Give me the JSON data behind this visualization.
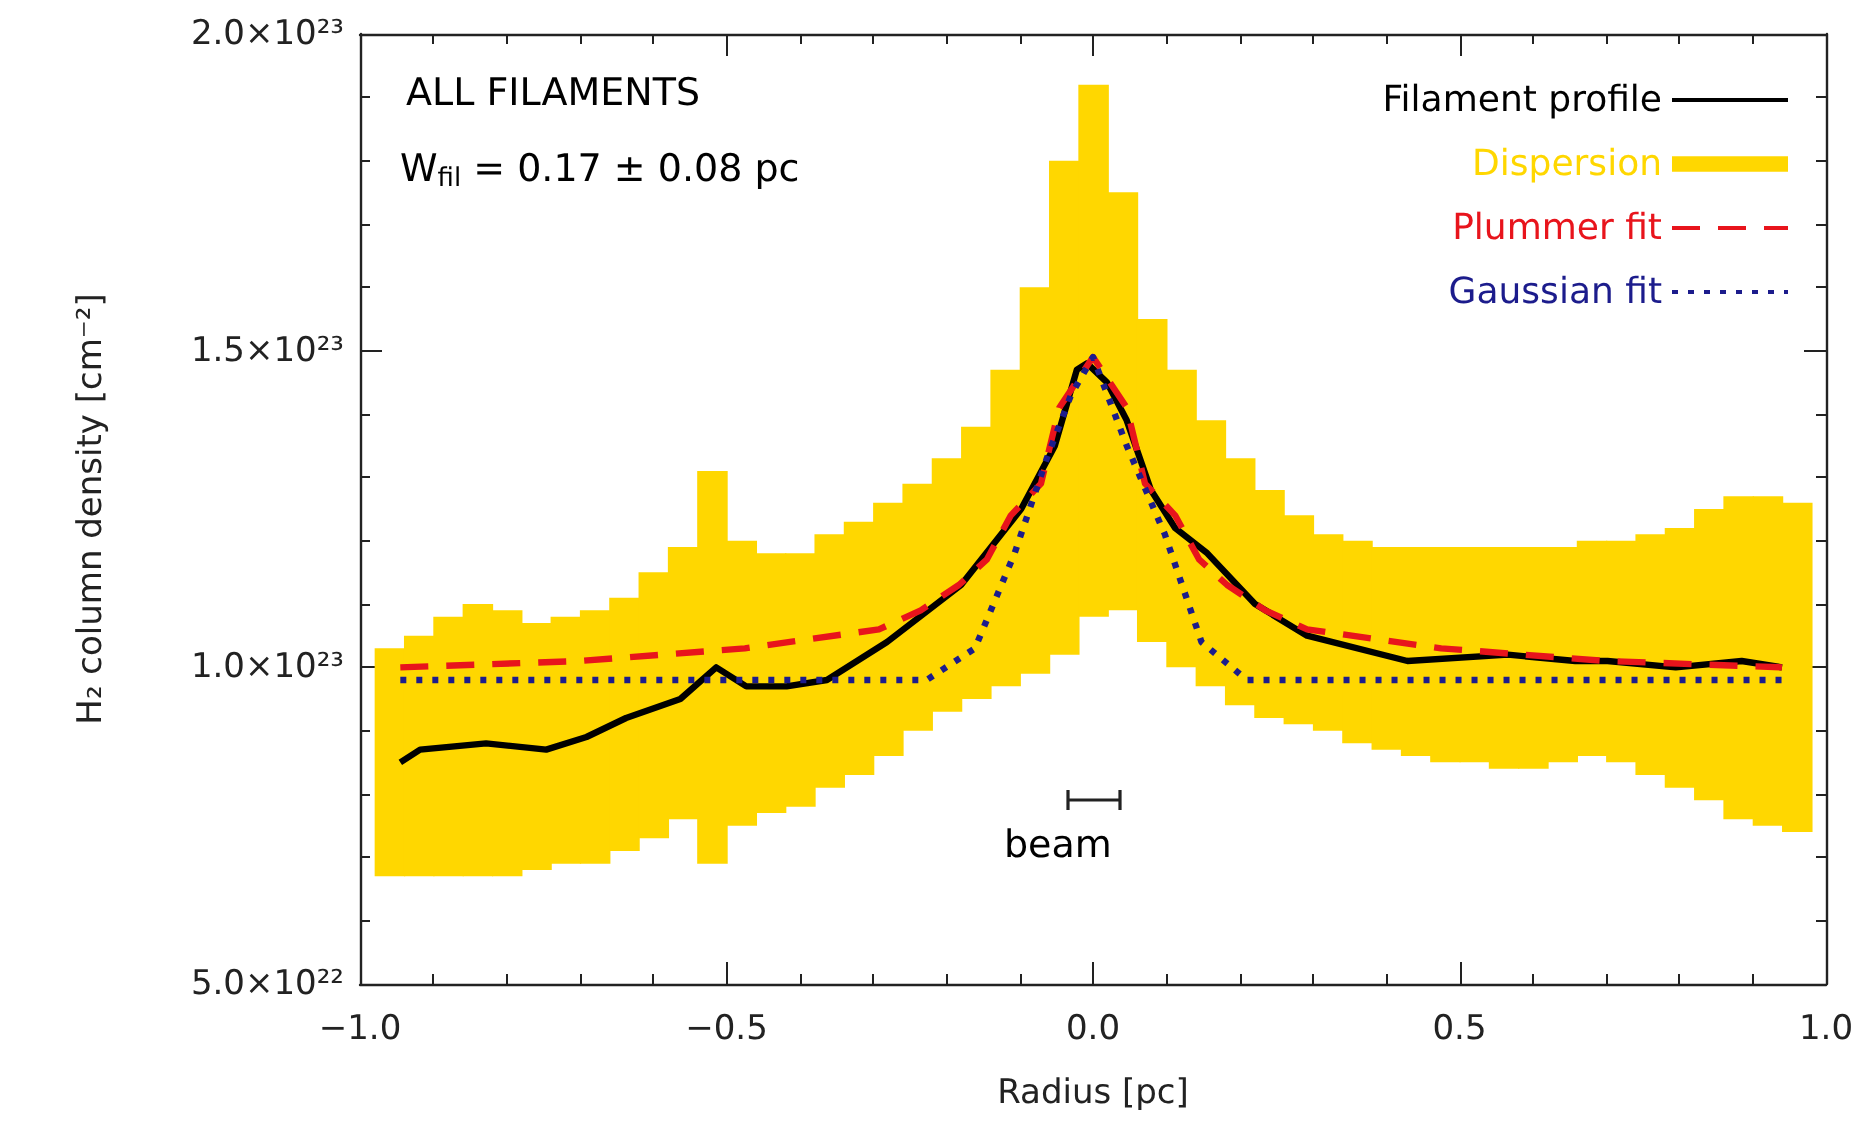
{
  "chart_data": {
    "type": "line",
    "xlabel": "Radius [pc]",
    "ylabel": "H₂ column density [cm⁻²]",
    "annotations": [
      "ALL FILAMENTS",
      "W$_{fil}$ = 0.17 ± 0.08 pc",
      "beam"
    ],
    "xlim": [
      -1,
      1
    ],
    "xticks": [
      {
        "value": -1,
        "label": "−1.0"
      },
      {
        "value": -0.5,
        "label": "−0.5"
      },
      {
        "value": 0,
        "label": "0.0"
      },
      {
        "value": 0.5,
        "label": "0.5"
      },
      {
        "value": 1,
        "label": "1.0"
      }
    ],
    "ylim": [
      5e+22,
      2e+23
    ],
    "yticks": [
      {
        "value": 5e+22,
        "label": "5.0×10²²"
      },
      {
        "value": 1e+23,
        "label": "1.0×10²³"
      },
      {
        "value": 1.5e+23,
        "label": "1.5×10²³"
      },
      {
        "value": 2e+23,
        "label": "2.0×10²³"
      }
    ],
    "grid": false,
    "legend": "top right",
    "marker": "none",
    "series": [
      {
        "name": "Filament profile",
        "color": "#000000",
        "line_style": "solid",
        "x": [
          -0.945,
          -0.918,
          -0.828,
          -0.746,
          -0.691,
          -0.637,
          -0.563,
          -0.514,
          -0.473,
          -0.418,
          -0.363,
          -0.281,
          -0.18,
          -0.098,
          -0.052,
          -0.022,
          -0.008,
          0.019,
          0.046,
          0.079,
          0.112,
          0.156,
          0.221,
          0.292,
          0.429,
          0.566,
          0.658,
          0.702,
          0.795,
          0.885,
          0.94
        ],
        "values": [
          8.5e+22,
          8.7e+22,
          8.8e+22,
          8.7e+22,
          8.9e+22,
          9.2e+22,
          9.5e+22,
          1e+23,
          9.7e+22,
          9.7e+22,
          9.8e+22,
          1.04e+23,
          1.13e+23,
          1.25e+23,
          1.35e+23,
          1.47e+23,
          1.48e+23,
          1.45e+23,
          1.39e+23,
          1.28e+23,
          1.22e+23,
          1.18e+23,
          1.1e+23,
          1.05e+23,
          1.01e+23,
          1.02e+23,
          1.01e+23,
          1.01e+23,
          1e+23,
          1.01e+23,
          1e+23
        ]
      },
      {
        "name": "Dispersion",
        "type": "bar",
        "color": "#ffd700",
        "x": [
          -0.96,
          -0.92,
          -0.88,
          -0.84,
          -0.8,
          -0.76,
          -0.72,
          -0.68,
          -0.64,
          -0.6,
          -0.56,
          -0.52,
          -0.48,
          -0.44,
          -0.4,
          -0.36,
          -0.32,
          -0.28,
          -0.24,
          -0.2,
          -0.16,
          -0.12,
          -0.08,
          -0.04,
          0,
          0.04,
          0.08,
          0.12,
          0.16,
          0.2,
          0.24,
          0.28,
          0.32,
          0.36,
          0.4,
          0.44,
          0.48,
          0.52,
          0.56,
          0.6,
          0.64,
          0.68,
          0.72,
          0.76,
          0.8,
          0.84,
          0.88,
          0.92,
          0.96
        ],
        "base": [
          6.7e+22,
          6.7e+22,
          6.7e+22,
          6.7e+22,
          6.7e+22,
          6.8e+22,
          6.9e+22,
          6.9e+22,
          7.1e+22,
          7.3e+22,
          7.6e+22,
          6.9e+22,
          7.5e+22,
          7.7e+22,
          7.8e+22,
          8.1e+22,
          8.3e+22,
          8.6e+22,
          9e+22,
          9.3e+22,
          9.5e+22,
          9.7e+22,
          9.9e+22,
          1.02e+23,
          1.08e+23,
          1.09e+23,
          1.04e+23,
          1e+23,
          9.7e+22,
          9.4e+22,
          9.2e+22,
          9.1e+22,
          9e+22,
          8.8e+22,
          8.7e+22,
          8.6e+22,
          8.5e+22,
          8.5e+22,
          8.4e+22,
          8.4e+22,
          8.5e+22,
          8.6e+22,
          8.5e+22,
          8.3e+22,
          8.1e+22,
          7.9e+22,
          7.6e+22,
          7.5e+22,
          7.4e+22
        ],
        "values": [
          3.6e+22,
          3.8e+22,
          4.1e+22,
          4.3e+22,
          4.2e+22,
          3.9e+22,
          3.9e+22,
          4e+22,
          4e+22,
          4.2e+22,
          4.3e+22,
          6.2e+22,
          4.5e+22,
          4.1e+22,
          4e+22,
          4e+22,
          4e+22,
          4e+22,
          3.9e+22,
          4e+22,
          4.3e+22,
          5e+22,
          6.1e+22,
          7.8e+22,
          8.4e+22,
          6.6e+22,
          5.1e+22,
          4.7e+22,
          4.2e+22,
          3.9e+22,
          3.6e+22,
          3.3e+22,
          3.1e+22,
          3.2e+22,
          3.2e+22,
          3.3e+22,
          3.4e+22,
          3.4e+22,
          3.5e+22,
          3.5e+22,
          3.4e+22,
          3.4e+22,
          3.5e+22,
          3.8e+22,
          4.1e+22,
          4.6e+22,
          5.1e+22,
          5.2e+22,
          5.2e+22
        ]
      },
      {
        "name": "Plummer fit",
        "color": "#e8141c",
        "line_style": "dashed",
        "x": [
          -0.945,
          -0.7,
          -0.475,
          -0.292,
          -0.235,
          -0.183,
          -0.145,
          -0.112,
          -0.071,
          -0.046,
          0,
          0.046,
          0.071,
          0.112,
          0.145,
          0.183,
          0.235,
          0.292,
          0.475,
          0.7,
          0.94
        ],
        "values": [
          1e+23,
          1.01e+23,
          1.03e+23,
          1.06e+23,
          1.09e+23,
          1.13e+23,
          1.17e+23,
          1.24e+23,
          1.29e+23,
          1.41e+23,
          1.49e+23,
          1.41e+23,
          1.29e+23,
          1.24e+23,
          1.17e+23,
          1.13e+23,
          1.09e+23,
          1.06e+23,
          1.03e+23,
          1.01e+23,
          1e+23
        ]
      },
      {
        "name": "Gaussian fit",
        "color": "#1c1c8c",
        "line_style": "dotted",
        "x": [
          -0.945,
          -0.227,
          -0.161,
          -0.107,
          -0.063,
          -0.03,
          0,
          0.046,
          0.098,
          0.148,
          0.21,
          0.94
        ],
        "values": [
          9.8e+22,
          9.8e+22,
          1.03e+23,
          1.18e+23,
          1.33e+23,
          1.43e+23,
          1.49e+23,
          1.35e+23,
          1.21e+23,
          1.04e+23,
          9.8e+22,
          9.8e+22
        ]
      }
    ]
  }
}
